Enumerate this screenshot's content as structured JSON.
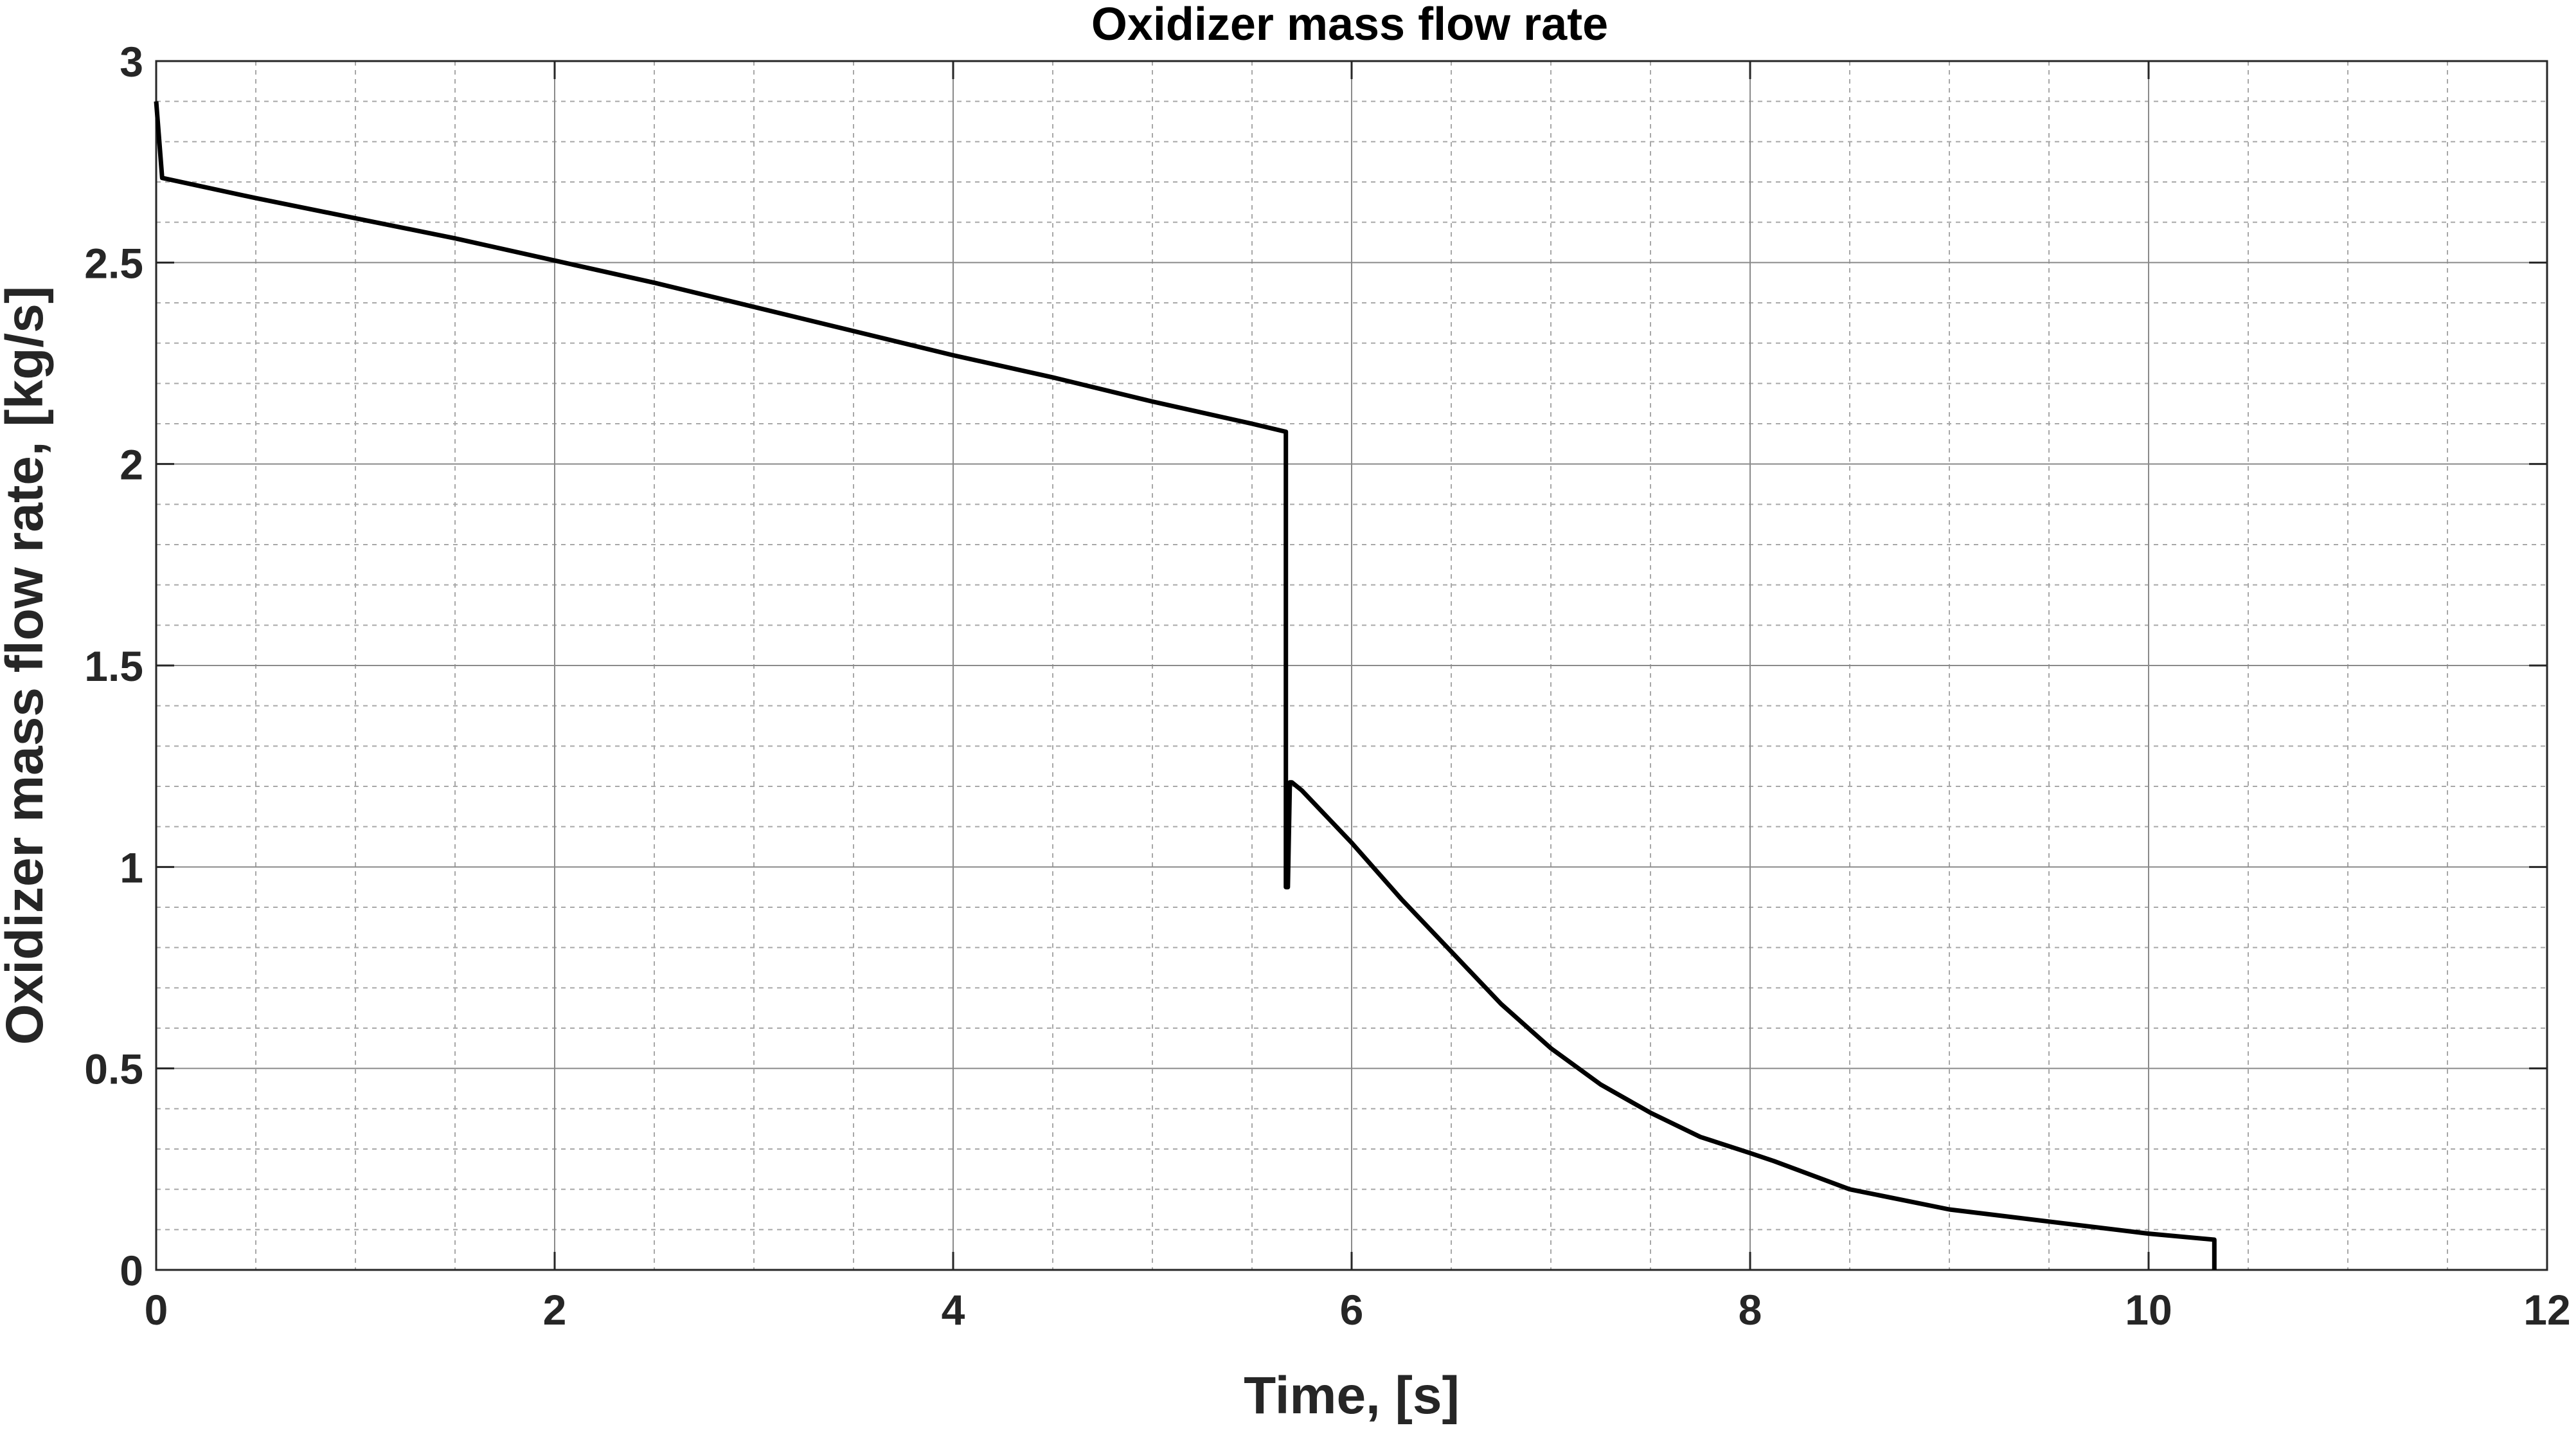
{
  "chart_data": {
    "type": "line",
    "title": "Oxidizer mass flow rate",
    "xlabel": "Time, [s]",
    "ylabel": "Oxidizer mass flow rate, [kg/s]",
    "xlim": [
      0,
      12
    ],
    "ylim": [
      0,
      3
    ],
    "xticks": [
      0,
      2,
      4,
      6,
      8,
      10,
      12
    ],
    "yticks": [
      0,
      0.5,
      1,
      1.5,
      2,
      2.5,
      3
    ],
    "xtick_labels": [
      "0",
      "2",
      "4",
      "6",
      "8",
      "10",
      "12"
    ],
    "ytick_labels": [
      "0",
      "0.5",
      "1",
      "1.5",
      "2",
      "2.5",
      "3"
    ],
    "grid": true,
    "minor_grid": true,
    "x_minor_step": 0.5,
    "y_minor_step": 0.1,
    "line_color": "#000000",
    "series": [
      {
        "x": [
          0,
          0.03,
          0.5,
          1,
          1.5,
          2,
          2.5,
          3,
          3.5,
          4,
          4.5,
          5,
          5.5,
          5.67,
          5.67,
          5.68,
          5.69,
          5.7,
          5.75,
          6.0,
          6.25,
          6.5,
          6.75,
          7.0,
          7.25,
          7.5,
          7.75,
          8.0,
          8.12,
          8.5,
          9.0,
          9.5,
          10.0,
          10.33,
          10.33
        ],
        "y": [
          2.9,
          2.71,
          2.66,
          2.61,
          2.56,
          2.505,
          2.45,
          2.39,
          2.33,
          2.27,
          2.215,
          2.155,
          2.1,
          2.08,
          0.95,
          0.95,
          1.21,
          1.21,
          1.19,
          1.06,
          0.92,
          0.79,
          0.66,
          0.55,
          0.46,
          0.39,
          0.33,
          0.29,
          0.27,
          0.2,
          0.15,
          0.12,
          0.09,
          0.075,
          0.0
        ]
      }
    ]
  }
}
